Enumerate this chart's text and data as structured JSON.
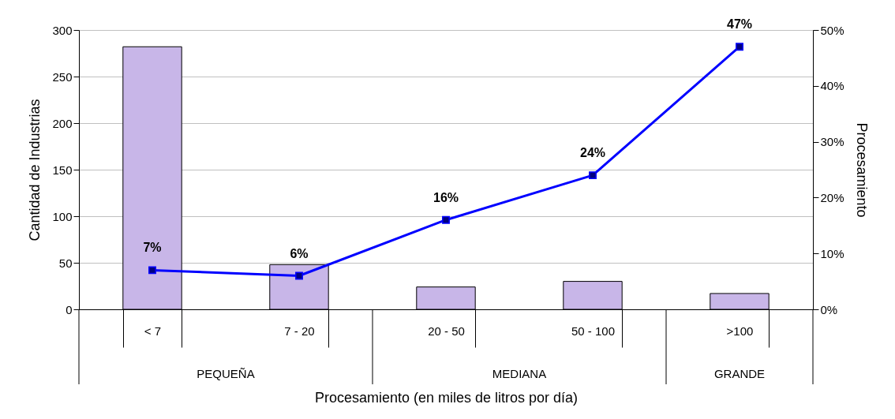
{
  "chart_data": {
    "type": "bar",
    "xlabel": "Procesamiento (en miles de litros por día)",
    "ylabel": "Cantidad de Industrias",
    "y2label": "Procesamiento",
    "categories": [
      "< 7",
      "7 - 20",
      "20 - 50",
      "50 - 100",
      ">100"
    ],
    "series": [
      {
        "color": "#c8b6e8",
        "values": [
          282,
          48,
          24,
          30,
          17
        ]
      },
      {
        "type": "line",
        "axis": "y2",
        "color": "#0000ff",
        "marker": "square",
        "values": [
          7,
          6,
          16,
          24,
          47
        ],
        "value_labels": [
          "7%",
          "6%",
          "16%",
          "24%",
          "47%"
        ]
      }
    ],
    "ylim": [
      0,
      300
    ],
    "yticks": [
      0,
      50,
      100,
      150,
      200,
      250,
      300
    ],
    "y2lim": [
      0,
      50
    ],
    "y2ticks": [
      {
        "value": 0,
        "label": "0%"
      },
      {
        "value": 10,
        "label": "10%"
      },
      {
        "value": 20,
        "label": "20%"
      },
      {
        "value": 30,
        "label": "30%"
      },
      {
        "value": 40,
        "label": "40%"
      },
      {
        "value": 50,
        "label": "50%"
      }
    ],
    "annotations": [
      "PEQUEÑA",
      "MEDIANA",
      "GRANDE"
    ],
    "grid": "y"
  }
}
